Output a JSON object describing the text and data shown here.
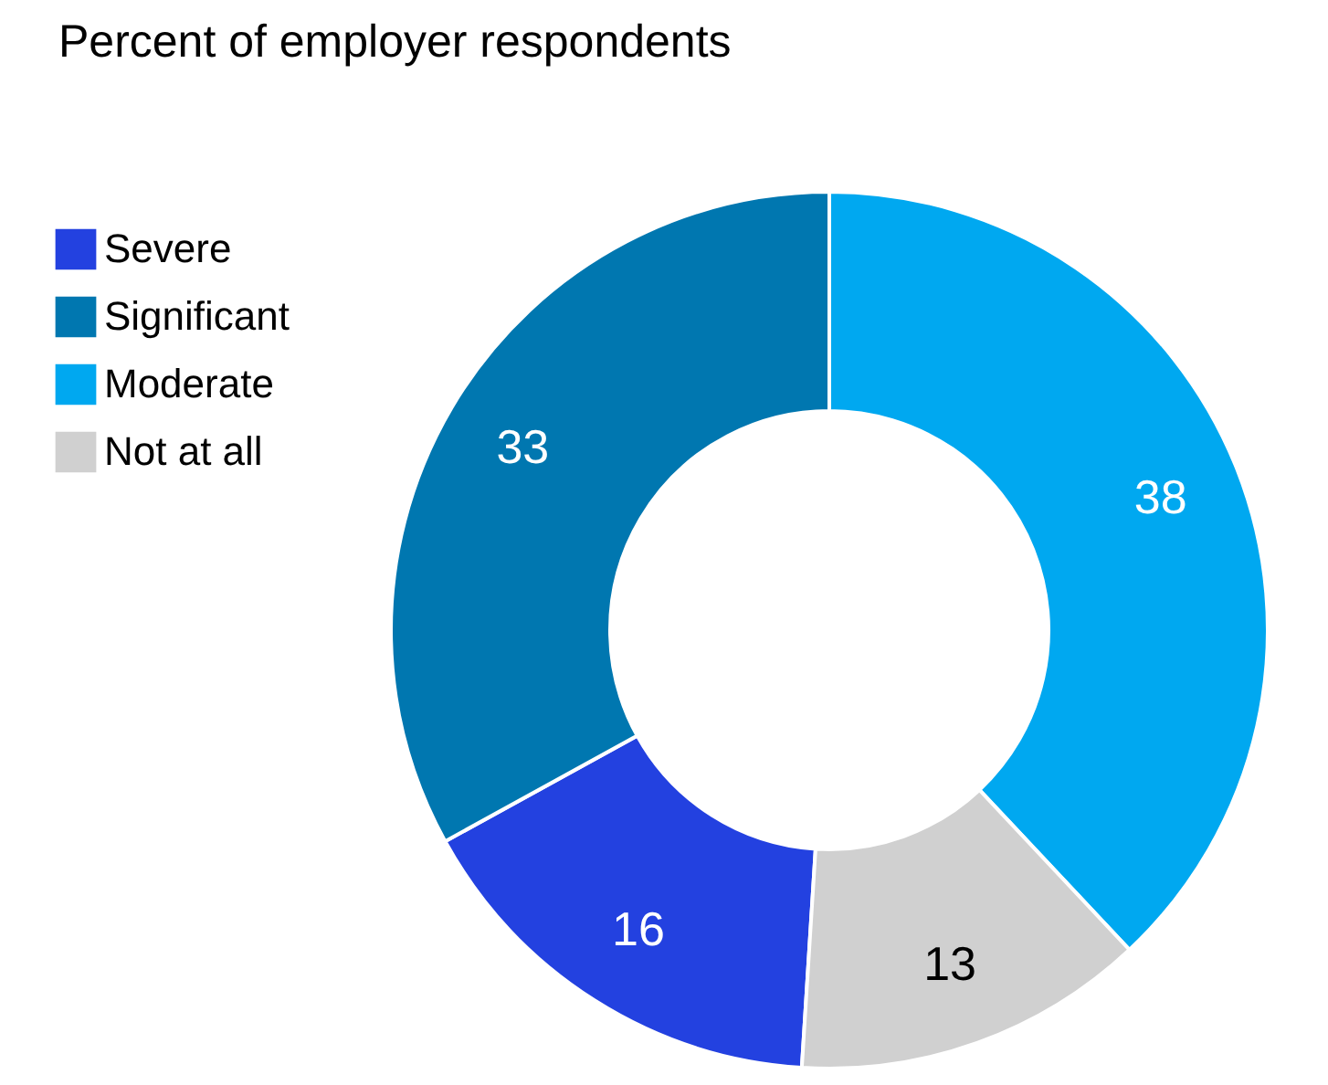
{
  "chart_data": {
    "type": "donut",
    "title": "Percent of employer respondents",
    "categories": [
      "Severe",
      "Significant",
      "Moderate",
      "Not at all"
    ],
    "values": [
      16,
      33,
      38,
      13
    ],
    "colors": [
      "#2341e0",
      "#0077b0",
      "#00a8f0",
      "#d0d0d0"
    ],
    "data_labels": true,
    "legend": "left"
  }
}
